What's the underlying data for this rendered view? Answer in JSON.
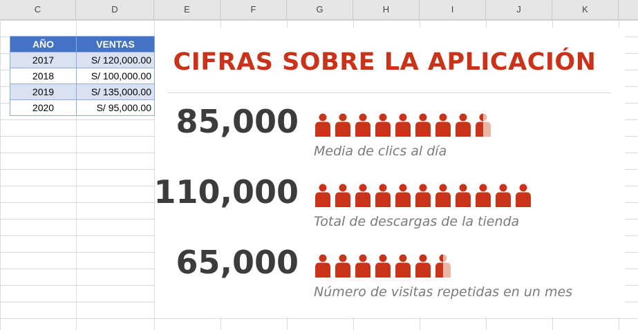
{
  "spreadsheet": {
    "columns": [
      "C",
      "D",
      "E",
      "F",
      "G",
      "H",
      "I",
      "J",
      "K"
    ],
    "table": {
      "headers": [
        "AÑO",
        "VENTAS"
      ],
      "rows": [
        [
          "2017",
          "S/ 120,000.00"
        ],
        [
          "2018",
          "S/ 100,000.00"
        ],
        [
          "2019",
          "S/ 135,000.00"
        ],
        [
          "2020",
          "S/ 95,000.00"
        ]
      ]
    }
  },
  "infographic": {
    "title": "CIFRAS SOBRE LA APLICACIÓN",
    "accent_color": "#c9331a",
    "faded_color": "#eab6a8",
    "stats": [
      {
        "value": "85,000",
        "caption": "Media de clics al día",
        "icon_count": 8.5
      },
      {
        "value": "110,000",
        "caption": "Total de descargas de la tienda",
        "icon_count": 11
      },
      {
        "value": "65,000",
        "caption": "Número de visitas repetidas en un mes",
        "icon_count": 6.5
      }
    ],
    "icon_name": "person-icon"
  }
}
